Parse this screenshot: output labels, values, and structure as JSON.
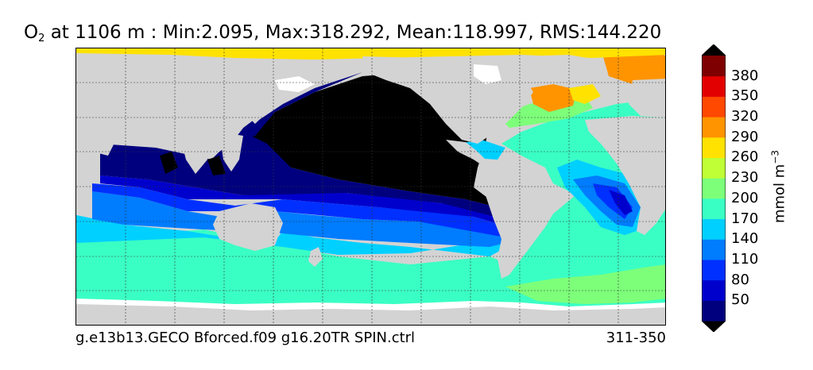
{
  "title": {
    "variable": "O",
    "subscript": "2",
    "rest": " at 1106 m : Min:2.095, Max:318.292, Mean:118.997, RMS:144.220"
  },
  "footer": {
    "left": "g.e13b13.GECO Bforced.f09 g16.20TR SPIN.ctrl",
    "right": "311-350"
  },
  "colorbar": {
    "unit_main": "mmol m",
    "unit_exp": "−3",
    "ticks": [
      "50",
      "80",
      "110",
      "140",
      "170",
      "200",
      "230",
      "260",
      "290",
      "320",
      "350",
      "380"
    ],
    "colors": [
      "#00007f",
      "#0000cd",
      "#0030ff",
      "#007cff",
      "#00d0ff",
      "#3affc4",
      "#7dff7a",
      "#c0ff36",
      "#ffe200",
      "#ff9400",
      "#ff4800",
      "#e30000",
      "#7f0000"
    ],
    "land_color": "#d3d3d3",
    "missing_color": "#ffffff",
    "extend_low_color": "#000000"
  }
}
